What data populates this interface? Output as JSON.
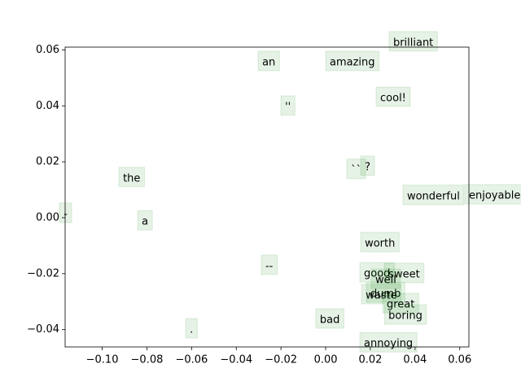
{
  "chart_data": {
    "type": "scatter",
    "labels": [
      "brilliant",
      "an",
      "amazing",
      "''",
      "cool!",
      "the",
      "``",
      "?",
      "wonderful",
      "enjoyable",
      "-",
      "a",
      "worth",
      "--",
      "good",
      "sweet",
      "well",
      "dumb",
      "waste",
      "great",
      "boring",
      "bad",
      ".",
      "annoying"
    ],
    "x": [
      0.0302,
      -0.0284,
      0.0018,
      -0.0182,
      0.0244,
      -0.0907,
      0.0113,
      0.0175,
      0.0364,
      0.0641,
      -0.1173,
      -0.0823,
      0.0175,
      -0.027,
      0.0171,
      0.0281,
      0.0222,
      0.02,
      0.0179,
      0.0273,
      0.0281,
      -0.0026,
      -0.0608,
      0.0171
    ],
    "y": [
      0.0625,
      0.0555,
      0.0555,
      0.0395,
      0.0427,
      0.014,
      0.0169,
      0.018,
      0.0076,
      0.0078,
      0.0012,
      -0.0015,
      -0.0093,
      -0.0174,
      -0.0201,
      -0.0203,
      -0.0224,
      -0.0273,
      -0.0279,
      -0.0311,
      -0.0352,
      -0.0366,
      -0.0401,
      -0.0451
    ],
    "box_color": "#008000",
    "xlim": [
      -0.1166,
      0.0641
    ],
    "ylim": [
      -0.0462,
      0.061
    ],
    "xticks": [
      {
        "value": -0.1,
        "label": "−0.10"
      },
      {
        "value": -0.08,
        "label": "−0.08"
      },
      {
        "value": -0.06,
        "label": "−0.06"
      },
      {
        "value": -0.04,
        "label": "−0.04"
      },
      {
        "value": -0.02,
        "label": "−0.02"
      },
      {
        "value": 0.0,
        "label": "0.00"
      },
      {
        "value": 0.02,
        "label": "0.02"
      },
      {
        "value": 0.04,
        "label": "0.04"
      },
      {
        "value": 0.06,
        "label": "0.06"
      }
    ],
    "yticks": [
      {
        "value": -0.04,
        "label": "−0.04"
      },
      {
        "value": -0.02,
        "label": "−0.02"
      },
      {
        "value": 0.0,
        "label": "0.00"
      },
      {
        "value": 0.02,
        "label": "0.02"
      },
      {
        "value": 0.04,
        "label": "0.04"
      },
      {
        "value": 0.06,
        "label": "0.06"
      }
    ]
  }
}
